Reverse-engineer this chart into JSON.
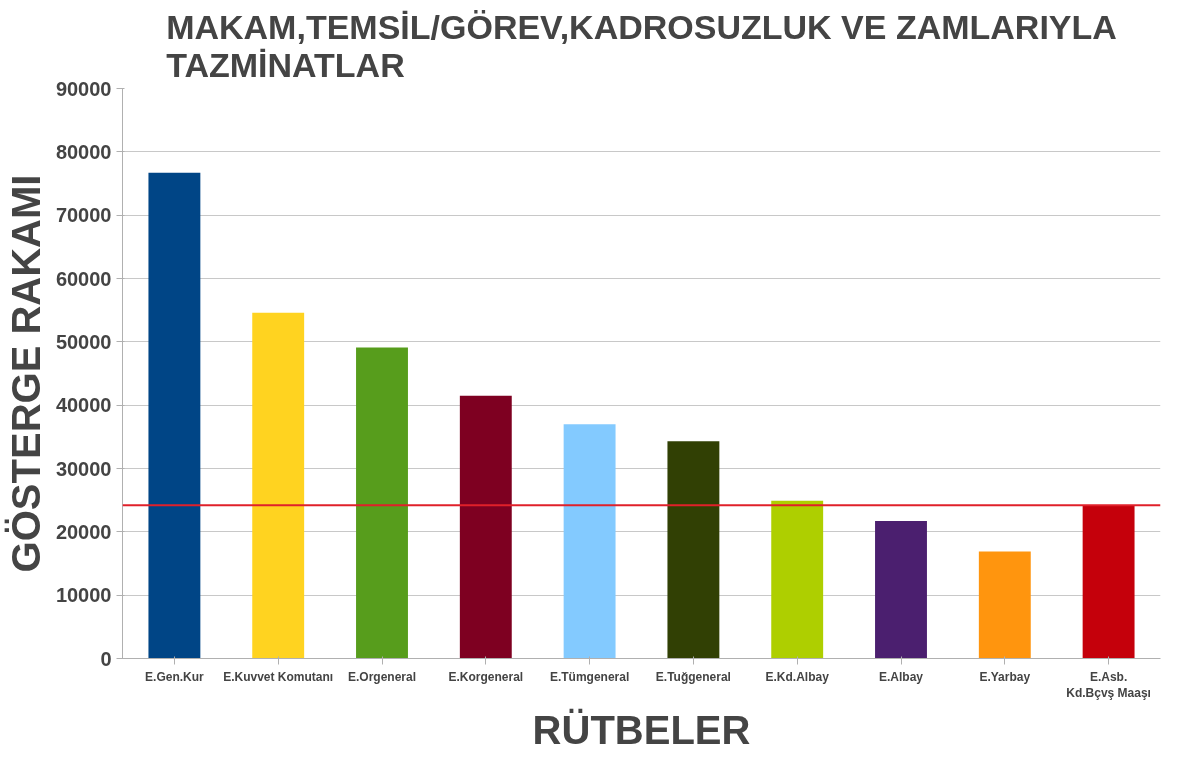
{
  "chart_data": {
    "type": "bar",
    "title": "MAKAM,TEMSİL/GÖREV,KADROSUZLUK VE ZAMLARIYLA TAZMİNATLAR",
    "xlabel": "RÜTBELER",
    "ylabel": "GÖSTERGE RAKAMI",
    "categories": [
      "E.Gen.Kur",
      "E.Kuvvet Komutanı",
      "E.Orgeneral",
      "E.Korgeneral",
      "E.Tümgeneral",
      "E.Tuğgeneral",
      "E.Kd.Albay",
      "E.Albay",
      "E.Yarbay",
      "E.Asb.\nKd.Bçvş Maaşı"
    ],
    "values": [
      76700,
      54600,
      49100,
      41500,
      37000,
      34300,
      24900,
      21700,
      16900,
      24200
    ],
    "colors": [
      "#004586",
      "#ffd320",
      "#579d1c",
      "#7e0021",
      "#83caff",
      "#314004",
      "#aecf00",
      "#4b1f6f",
      "#ff950e",
      "#c5000b"
    ],
    "ylim": [
      0,
      90000
    ],
    "yticks": [
      0,
      10000,
      20000,
      30000,
      40000,
      50000,
      60000,
      70000,
      80000,
      90000
    ],
    "grid": "y",
    "ref_lines": [
      {
        "axis": "y",
        "value": 24200,
        "color": "#e0202a"
      }
    ]
  }
}
